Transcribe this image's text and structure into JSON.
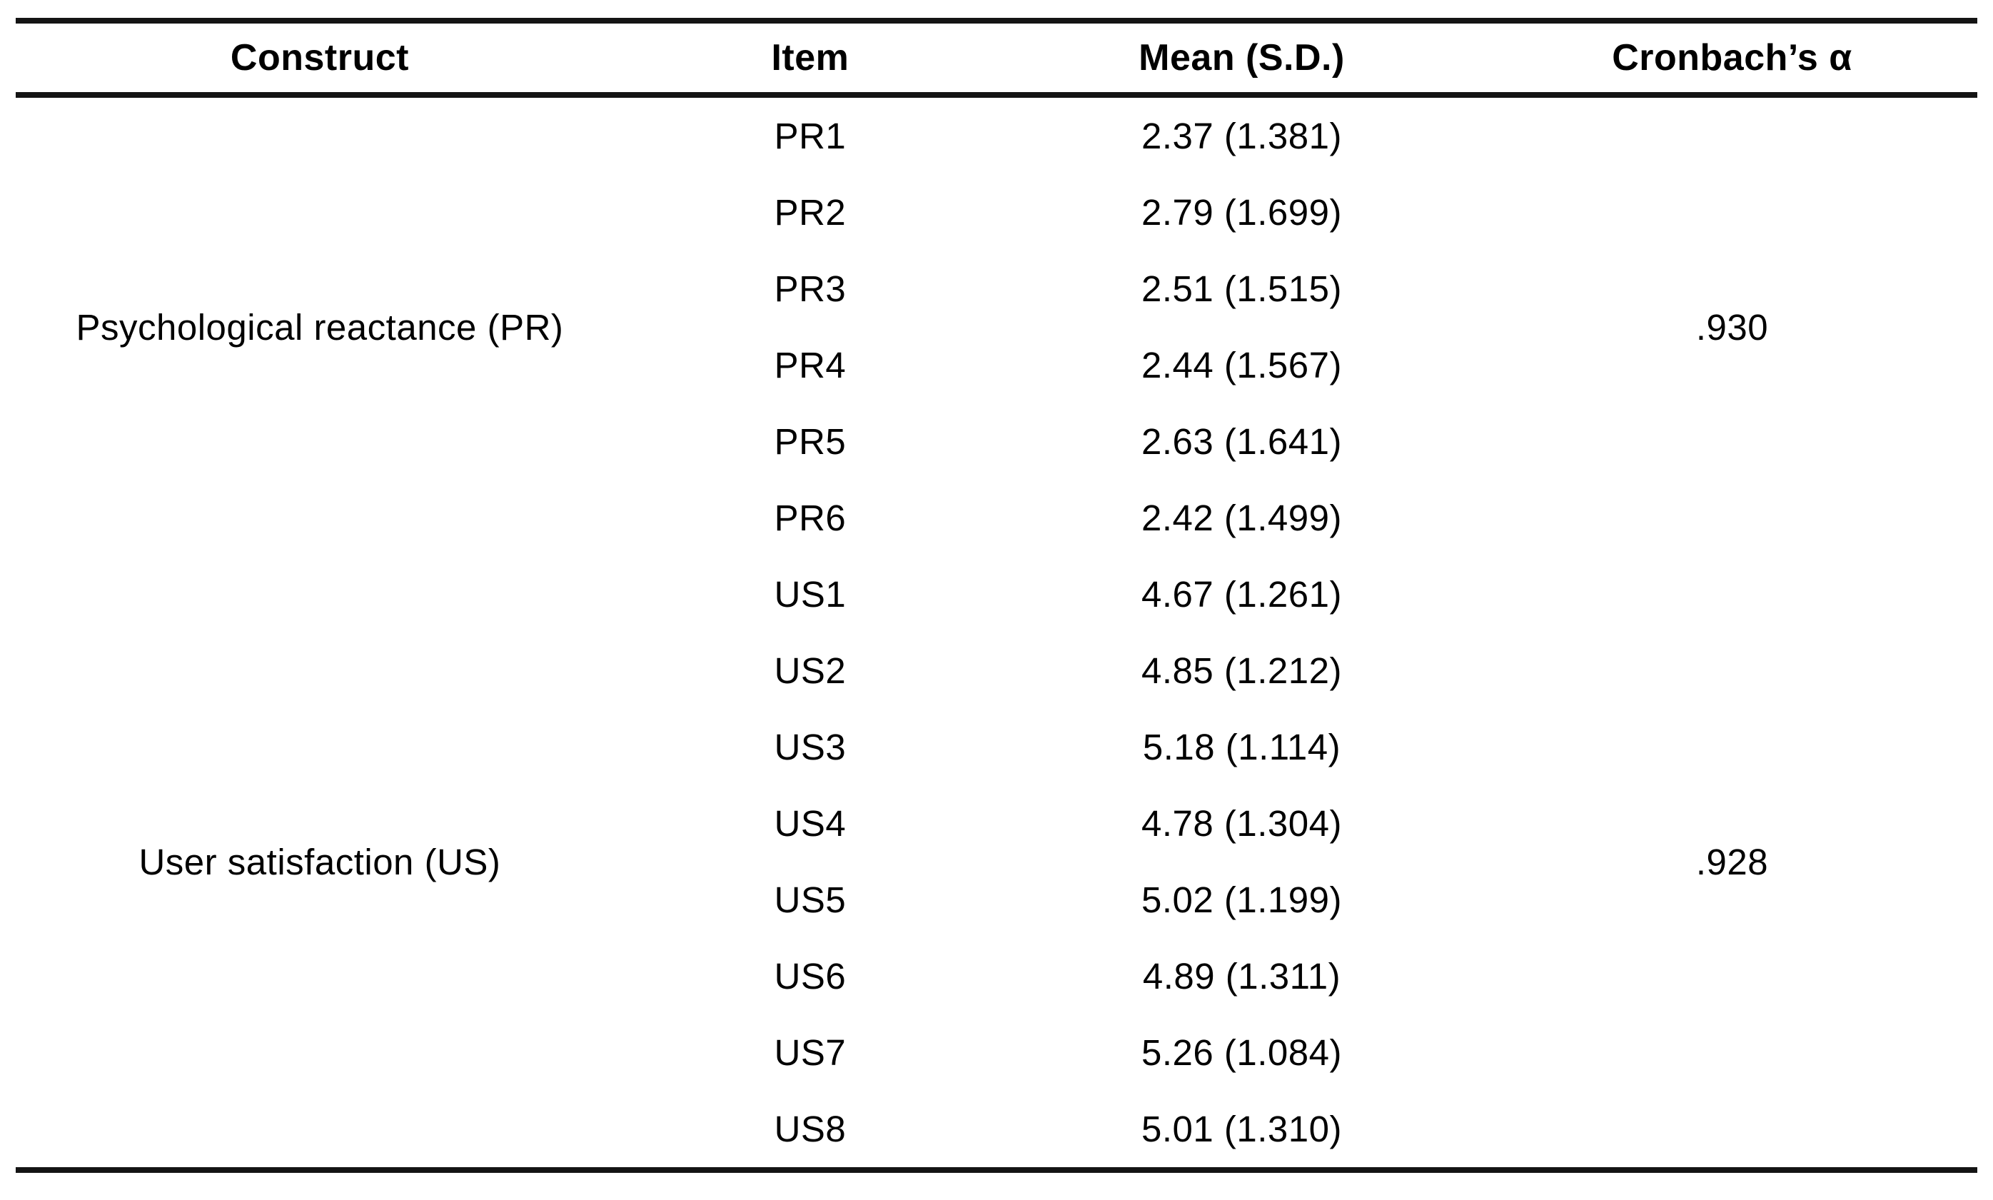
{
  "table": {
    "headers": [
      "Construct",
      "Item",
      "Mean (S.D.)",
      "Cronbach’s α"
    ],
    "groups": [
      {
        "construct": "Psychological reactance (PR)",
        "cronbach_alpha": ".930",
        "items": [
          {
            "item": "PR1",
            "mean_sd": "2.37 (1.381)"
          },
          {
            "item": "PR2",
            "mean_sd": "2.79 (1.699)"
          },
          {
            "item": "PR3",
            "mean_sd": "2.51 (1.515)"
          },
          {
            "item": "PR4",
            "mean_sd": "2.44 (1.567)"
          },
          {
            "item": "PR5",
            "mean_sd": "2.63 (1.641)"
          },
          {
            "item": "PR6",
            "mean_sd": "2.42 (1.499)"
          }
        ]
      },
      {
        "construct": "User satisfaction (US)",
        "cronbach_alpha": ".928",
        "items": [
          {
            "item": "US1",
            "mean_sd": "4.67 (1.261)"
          },
          {
            "item": "US2",
            "mean_sd": "4.85 (1.212)"
          },
          {
            "item": "US3",
            "mean_sd": "5.18 (1.114)"
          },
          {
            "item": "US4",
            "mean_sd": "4.78 (1.304)"
          },
          {
            "item": "US5",
            "mean_sd": "5.02 (1.199)"
          },
          {
            "item": "US6",
            "mean_sd": "4.89 (1.311)"
          },
          {
            "item": "US7",
            "mean_sd": "5.26 (1.084)"
          },
          {
            "item": "US8",
            "mean_sd": "5.01 (1.310)"
          }
        ]
      }
    ]
  }
}
